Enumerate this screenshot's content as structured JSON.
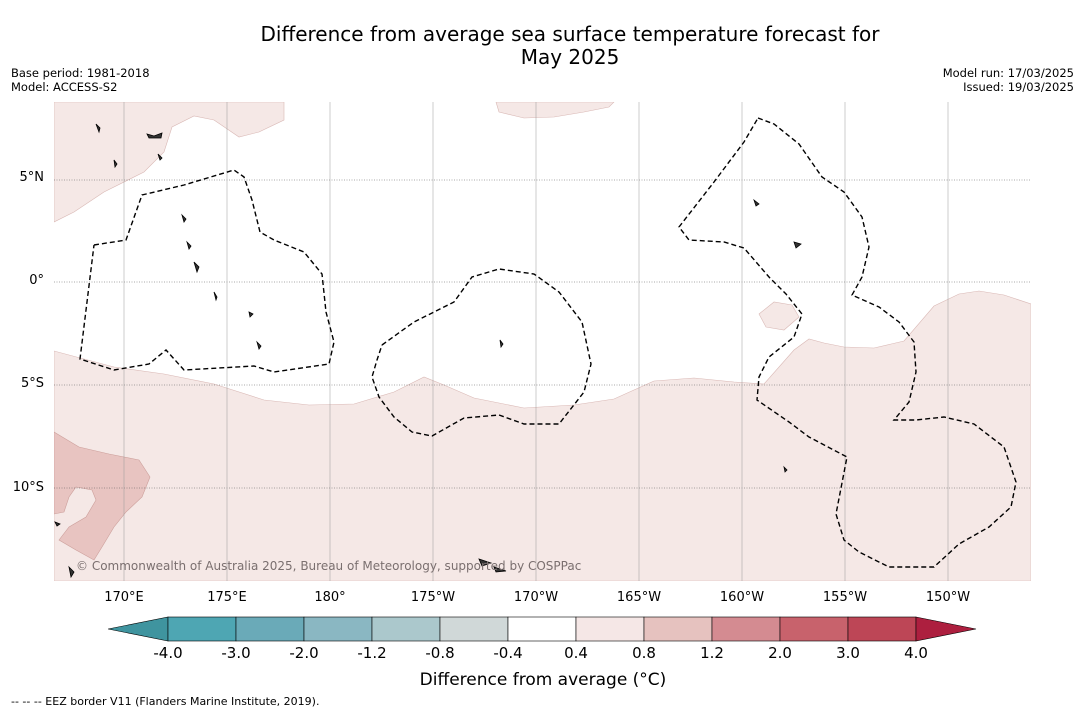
{
  "header": {
    "title_line1": "Difference from average sea surface temperature forecast for",
    "title_line2": "May 2025",
    "base_period": "Base period: 1981-2018",
    "model": "Model: ACCESS-S2",
    "model_run": "Model run: 17/03/2025",
    "issued": "Issued: 19/03/2025"
  },
  "map": {
    "lat_labels": [
      "5°N",
      "0°",
      "5°S",
      "10°S"
    ],
    "lon_labels": [
      "170°E",
      "175°E",
      "180°",
      "175°W",
      "170°W",
      "165°W",
      "160°W",
      "155°W",
      "150°W"
    ],
    "copyright": "© Commonwealth of Australia 2025, Bureau of Meteorology, supported by COSPPac"
  },
  "colorbar": {
    "ticks": [
      "-4.0",
      "-3.0",
      "-2.0",
      "-1.2",
      "-0.8",
      "-0.4",
      "0.4",
      "0.8",
      "1.2",
      "2.0",
      "3.0",
      "4.0"
    ],
    "colors": [
      "#3f949f",
      "#4ea6b3",
      "#6aaab8",
      "#8ab7c2",
      "#abc8cc",
      "#d0d8d8",
      "#ffffff",
      "#f5e7e6",
      "#e6c2bf",
      "#d48b91",
      "#c8626c",
      "#bd4656",
      "#ad1f3f"
    ],
    "label": "Difference from average (°C)"
  },
  "legend": {
    "eez": "-- -- -- EEZ border V11 (Flanders Marine Institute, 2019)."
  }
}
